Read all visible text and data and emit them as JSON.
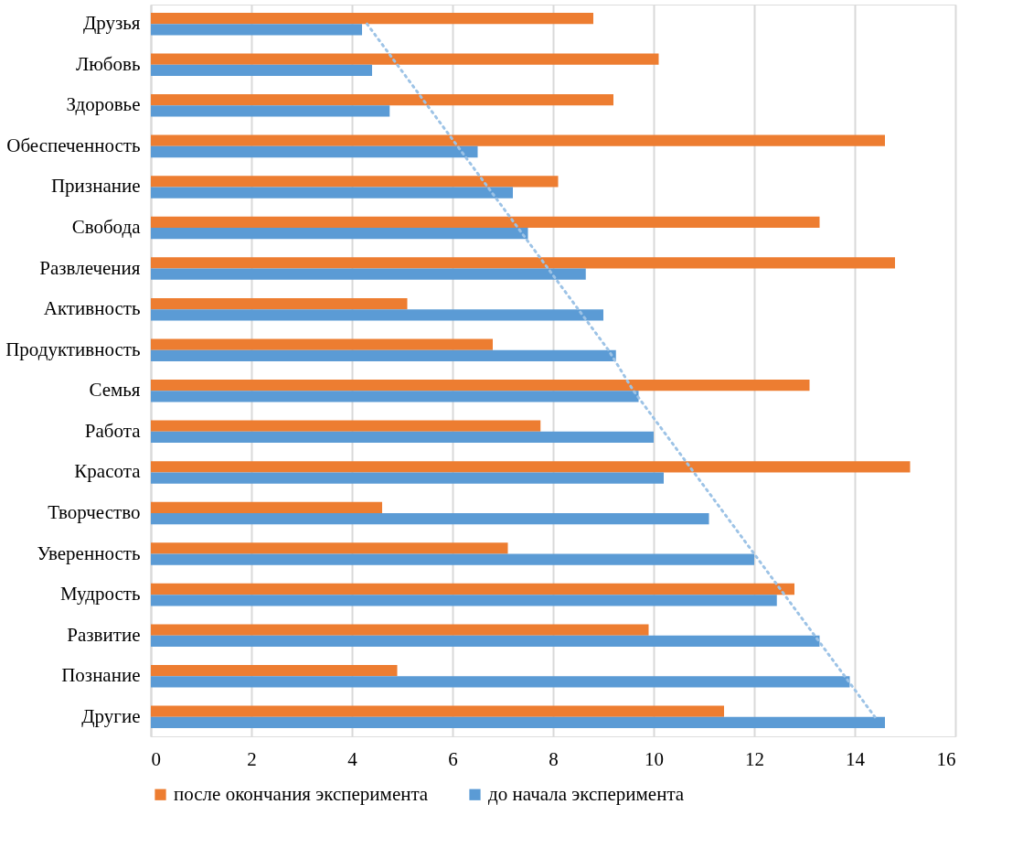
{
  "chart_data": {
    "type": "bar",
    "orientation": "horizontal",
    "categories": [
      "Друзья",
      "Любовь",
      "Здоровье",
      "Обеспеченность",
      "Признание",
      "Свобода",
      "Развлечения",
      "Активность",
      "Продуктивность",
      "Семья",
      "Работа",
      "Красота",
      "Творчество",
      "Уверенность",
      "Мудрость",
      "Развитие",
      "Познание",
      "Другие"
    ],
    "series": [
      {
        "name": "после окончания эксперимента",
        "color": "#ed7d31",
        "values": [
          8.8,
          10.1,
          9.2,
          14.6,
          8.1,
          13.3,
          14.8,
          5.1,
          6.8,
          13.1,
          7.75,
          15.1,
          4.6,
          7.1,
          12.8,
          9.9,
          4.9,
          11.4
        ]
      },
      {
        "name": "до начала эксперимента",
        "color": "#5b9bd5",
        "values": [
          4.2,
          4.4,
          4.75,
          6.5,
          7.2,
          7.5,
          8.65,
          9.0,
          9.25,
          9.7,
          10.0,
          10.2,
          11.1,
          12.0,
          12.45,
          13.3,
          13.9,
          14.6
        ]
      },
      {
        "type": "line",
        "line_style": "dotted",
        "color": "#9dc3e6",
        "values": [
          4.3,
          4.9,
          5.5,
          6.1,
          6.7,
          7.3,
          7.9,
          8.5,
          9.1,
          9.6,
          10.2,
          10.8,
          11.4,
          12.0,
          12.6,
          13.2,
          13.8,
          14.4
        ]
      }
    ],
    "xlim": [
      0,
      16
    ],
    "xticks": [
      0,
      2,
      4,
      6,
      8,
      10,
      12,
      14,
      16
    ],
    "grid": "x",
    "legend": "bottom"
  }
}
